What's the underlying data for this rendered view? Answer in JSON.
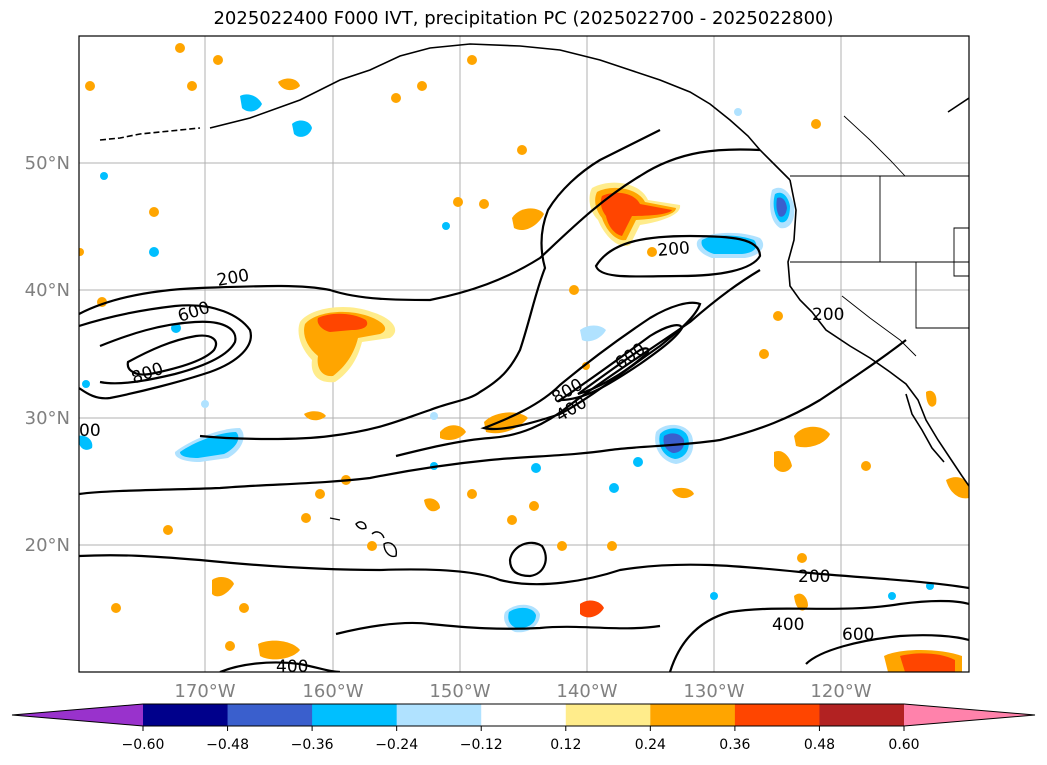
{
  "title": "2025022400 F000 IVT, precipitation PC (2025022700 - 2025022800)",
  "map": {
    "lat_labels": [
      "50°N",
      "40°N",
      "30°N",
      "20°N"
    ],
    "lon_labels": [
      "170°W",
      "160°W",
      "150°W",
      "140°W",
      "130°W",
      "120°W"
    ],
    "tick_color": "#808080",
    "contour_labels": [
      "200",
      "600",
      "800",
      "200",
      "800",
      "400",
      "600",
      "200",
      "200",
      "400",
      "600",
      "400",
      "00"
    ]
  },
  "colorbar": {
    "colors": [
      "#9932cc",
      "#00008b",
      "#3a5fcd",
      "#00bfff",
      "#b0e2ff",
      "#ffffff",
      "#ffec8b",
      "#ffa500",
      "#ff4500",
      "#b22222",
      "#ff82ab"
    ],
    "tick_labels": [
      "−0.60",
      "−0.48",
      "−0.36",
      "−0.24",
      "−0.12",
      "0.12",
      "0.24",
      "0.36",
      "0.48",
      "0.60"
    ]
  }
}
